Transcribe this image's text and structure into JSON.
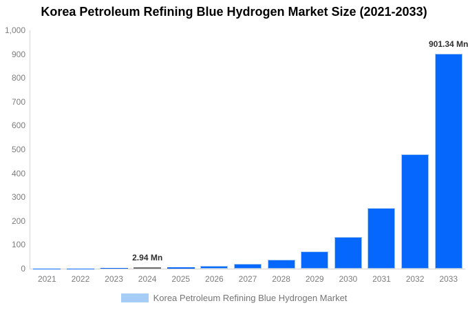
{
  "chart_data": {
    "type": "bar",
    "title": "Korea Petroleum Refining Blue Hydrogen Market Size (2021-2033)",
    "unit": "Mn",
    "categories": [
      "2021",
      "2022",
      "2023",
      "2024",
      "2025",
      "2026",
      "2027",
      "2028",
      "2029",
      "2030",
      "2031",
      "2032",
      "2033"
    ],
    "values": [
      0.45,
      0.85,
      1.6,
      2.94,
      5.6,
      10.5,
      19.9,
      37.6,
      71,
      134,
      254,
      480,
      901.34
    ],
    "annotations": [
      {
        "index": 3,
        "text": "2.94 Mn"
      },
      {
        "index": 12,
        "text": "901.34 Mn"
      }
    ],
    "highlight_index": 3,
    "ylim": [
      0,
      1000
    ],
    "ytick_labels": [
      "0",
      "100",
      "200",
      "300",
      "400",
      "500",
      "600",
      "700",
      "800",
      "900",
      "1,000"
    ],
    "grid": false,
    "xlabel": "",
    "ylabel": "",
    "legend": {
      "label": "Korea Petroleum Refining Blue Hydrogen Market",
      "position": "bottom"
    }
  },
  "colors": {
    "bar_fill": "#0567fb",
    "bar_border": "#a6c9f0",
    "highlight_fill": "#6e6e6e",
    "axis_line": "#d4d4d4",
    "tick_label": "#7d7d7d",
    "annotation_text": "#2f2f2f",
    "legend_swatch": "#a6cdf5",
    "legend_text": "#757575",
    "title_text": "#000000"
  }
}
